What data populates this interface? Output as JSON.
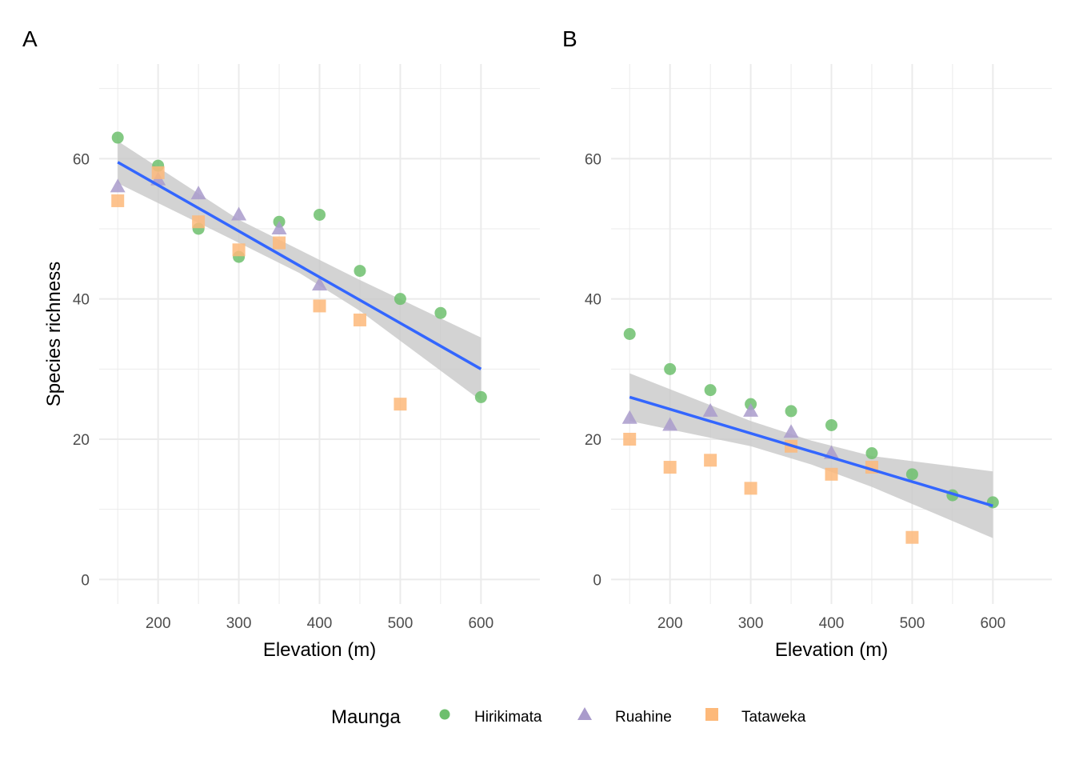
{
  "legend": {
    "title": "Maunga",
    "entries": [
      {
        "name": "Hirikimata",
        "shape": "circle",
        "color": "#6dbf6d"
      },
      {
        "name": "Ruahine",
        "shape": "triangle",
        "color": "#a99bcb"
      },
      {
        "name": "Tataweka",
        "shape": "square",
        "color": "#fdb97a"
      }
    ]
  },
  "colors": {
    "fit_line": "#3366ff",
    "ribbon": "#c8c8c8",
    "grid_major": "#ebebeb",
    "grid_minor": "#f5f5f5"
  },
  "chart_data": [
    {
      "type": "scatter",
      "panel": "A",
      "xlabel": "Elevation (m)",
      "ylabel": "Species richness",
      "xlim": [
        127,
        673
      ],
      "ylim": [
        -3.5,
        73.5
      ],
      "xticks": [
        200,
        300,
        400,
        500,
        600
      ],
      "yticks": [
        0,
        20,
        40,
        60
      ],
      "grid": true,
      "series": [
        {
          "name": "Hirikimata",
          "x": [
            150,
            200,
            250,
            300,
            350,
            400,
            450,
            500,
            550,
            600
          ],
          "y": [
            63,
            59,
            50,
            46,
            51,
            52,
            44,
            40,
            38,
            26
          ]
        },
        {
          "name": "Ruahine",
          "x": [
            150,
            200,
            250,
            300,
            350,
            400
          ],
          "y": [
            56,
            57,
            55,
            52,
            50,
            42
          ]
        },
        {
          "name": "Tataweka",
          "x": [
            150,
            200,
            250,
            300,
            350,
            400,
            450,
            500
          ],
          "y": [
            54,
            58,
            51,
            47,
            48,
            39,
            37,
            25
          ]
        }
      ],
      "fit": {
        "x": [
          150,
          600
        ],
        "y": [
          59.5,
          30.0
        ]
      },
      "ci": {
        "x": [
          150,
          300,
          375,
          450,
          600
        ],
        "upper": [
          62.5,
          51.3,
          47.0,
          42.7,
          34.5
        ],
        "lower": [
          56.5,
          48.0,
          43.7,
          38.3,
          25.5
        ]
      }
    },
    {
      "type": "scatter",
      "panel": "B",
      "xlabel": "Elevation (m)",
      "ylabel": "",
      "xlim": [
        127,
        673
      ],
      "ylim": [
        -3.5,
        73.5
      ],
      "xticks": [
        200,
        300,
        400,
        500,
        600
      ],
      "yticks": [
        0,
        20,
        40,
        60
      ],
      "grid": true,
      "series": [
        {
          "name": "Hirikimata",
          "x": [
            150,
            200,
            250,
            300,
            350,
            400,
            450,
            500,
            550,
            600
          ],
          "y": [
            35,
            30,
            27,
            25,
            24,
            22,
            18,
            15,
            12,
            11
          ]
        },
        {
          "name": "Ruahine",
          "x": [
            150,
            200,
            250,
            300,
            350,
            400
          ],
          "y": [
            23,
            22,
            24,
            24,
            21,
            18
          ]
        },
        {
          "name": "Tataweka",
          "x": [
            150,
            200,
            250,
            300,
            350,
            400,
            450,
            500
          ],
          "y": [
            20,
            16,
            17,
            13,
            19,
            15,
            16,
            6
          ]
        }
      ],
      "fit": {
        "x": [
          150,
          600
        ],
        "y": [
          26.0,
          10.5
        ]
      },
      "ci": {
        "x": [
          150,
          300,
          375,
          450,
          600
        ],
        "upper": [
          29.4,
          22.6,
          19.8,
          17.6,
          15.4
        ],
        "lower": [
          22.6,
          19.0,
          16.4,
          13.2,
          5.9
        ]
      }
    }
  ]
}
